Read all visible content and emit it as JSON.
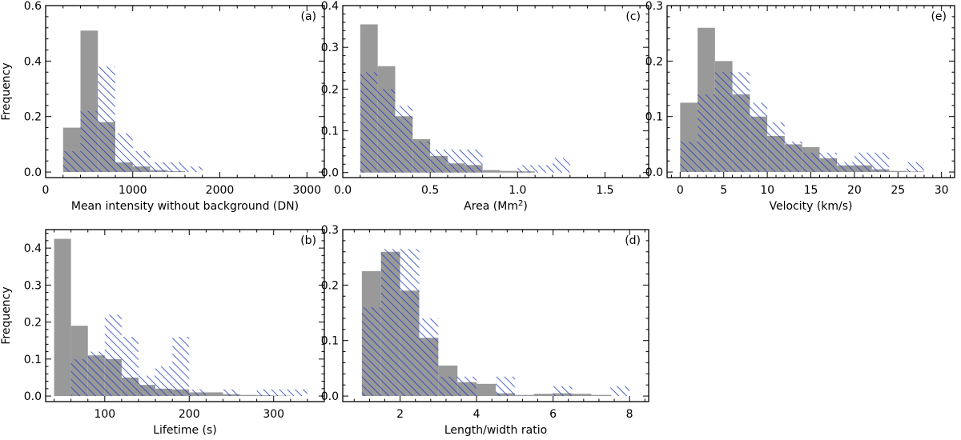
{
  "chart_data": [
    {
      "type": "bar",
      "panel_label": "(a)",
      "xlabel": "Mean intensity without background (DN)",
      "ylabel": "Frequency",
      "xlim": [
        0,
        3200
      ],
      "ylim": [
        -0.02,
        0.6
      ],
      "xticks": [
        0,
        1000,
        2000,
        3000
      ],
      "xtick_labels": [
        "0",
        "1000",
        "2000",
        "3000"
      ],
      "yticks": [
        0,
        0.2,
        0.4,
        0.6
      ],
      "ytick_labels": [
        "0.0",
        "0.2",
        "0.4",
        "0.6"
      ],
      "bin_edges": [
        200,
        400,
        600,
        800,
        1000,
        1200,
        1400,
        1600,
        1800
      ],
      "series": [
        {
          "name": "gray",
          "style": "filled",
          "color": "#999999",
          "values": [
            0.16,
            0.51,
            0.18,
            0.035,
            0.02,
            0.007,
            0.003,
            0.0
          ]
        },
        {
          "name": "blue-hatched",
          "style": "hatched",
          "color": "#1f3fbf",
          "values": [
            0.075,
            0.22,
            0.38,
            0.14,
            0.075,
            0.035,
            0.035,
            0.02
          ]
        }
      ]
    },
    {
      "type": "bar",
      "panel_label": "(c)",
      "xlabel": "Area (Mm",
      "xlabel_sup": "2",
      "xlabel_tail": ")",
      "ylabel": "",
      "xlim": [
        0,
        1.75
      ],
      "ylim": [
        -0.012,
        0.4
      ],
      "xticks": [
        0,
        0.5,
        1.0,
        1.5
      ],
      "xtick_labels": [
        "0.0",
        "0.5",
        "1.0",
        "1.5"
      ],
      "yticks": [
        0,
        0.1,
        0.2,
        0.3,
        0.4
      ],
      "ytick_labels": [
        "0.0",
        "0.1",
        "0.2",
        "0.3",
        "0.4"
      ],
      "bin_edges": [
        0.1,
        0.2,
        0.3,
        0.4,
        0.5,
        0.6,
        0.7,
        0.8,
        0.9,
        1.0,
        1.1,
        1.2,
        1.3
      ],
      "series": [
        {
          "name": "gray",
          "style": "filled",
          "color": "#999999",
          "values": [
            0.355,
            0.255,
            0.135,
            0.08,
            0.04,
            0.022,
            0.018,
            0.006,
            0.004,
            0.003,
            0.0,
            0.0
          ]
        },
        {
          "name": "blue-hatched",
          "style": "hatched",
          "color": "#1f3fbf",
          "values": [
            0.24,
            0.2,
            0.16,
            0.075,
            0.055,
            0.055,
            0.055,
            0.0,
            0.0,
            0.018,
            0.018,
            0.035
          ]
        }
      ]
    },
    {
      "type": "bar",
      "panel_label": "(e)",
      "xlabel": "Velocity (km/s)",
      "ylabel": "",
      "xlim": [
        -1.5,
        31.5
      ],
      "ylim": [
        -0.01,
        0.3
      ],
      "xticks": [
        0,
        5,
        10,
        15,
        20,
        25,
        30
      ],
      "xtick_labels": [
        "0",
        "5",
        "10",
        "15",
        "20",
        "25",
        "30"
      ],
      "yticks": [
        0,
        0.1,
        0.2,
        0.3
      ],
      "ytick_labels": [
        "0.0",
        "0.1",
        "0.2",
        "0.3"
      ],
      "bin_edges": [
        0,
        2,
        4,
        6,
        8,
        10,
        12,
        14,
        16,
        18,
        20,
        22,
        24,
        26,
        28
      ],
      "series": [
        {
          "name": "gray",
          "style": "filled",
          "color": "#999999",
          "values": [
            0.125,
            0.26,
            0.2,
            0.14,
            0.1,
            0.065,
            0.05,
            0.045,
            0.025,
            0.012,
            0.012,
            0.005,
            0.002,
            0.001
          ]
        },
        {
          "name": "blue-hatched",
          "style": "hatched",
          "color": "#1f3fbf",
          "values": [
            0.055,
            0.14,
            0.18,
            0.18,
            0.125,
            0.09,
            0.055,
            0.035,
            0.035,
            0.018,
            0.035,
            0.035,
            0.0,
            0.018
          ]
        }
      ]
    },
    {
      "type": "bar",
      "panel_label": "(b)",
      "xlabel": "Lifetime (s)",
      "ylabel": "Frequency",
      "xlim": [
        30,
        360
      ],
      "ylim": [
        -0.015,
        0.45
      ],
      "xticks": [
        100,
        200,
        300
      ],
      "xtick_labels": [
        "100",
        "200",
        "300"
      ],
      "yticks": [
        0,
        0.1,
        0.2,
        0.3,
        0.4
      ],
      "ytick_labels": [
        "0.0",
        "0.1",
        "0.2",
        "0.3",
        "0.4"
      ],
      "bin_edges": [
        40,
        60,
        80,
        100,
        120,
        140,
        160,
        180,
        200,
        220,
        240,
        260,
        280,
        300,
        320,
        340
      ],
      "series": [
        {
          "name": "gray",
          "style": "filled",
          "color": "#999999",
          "values": [
            0.425,
            0.19,
            0.11,
            0.1,
            0.05,
            0.03,
            0.02,
            0.018,
            0.01,
            0.01,
            0.005,
            0.003,
            0.002,
            0.001,
            0.0
          ]
        },
        {
          "name": "blue-hatched",
          "style": "hatched",
          "color": "#1f3fbf",
          "values": [
            0.0,
            0.1,
            0.12,
            0.22,
            0.16,
            0.055,
            0.08,
            0.16,
            0.018,
            0.0,
            0.018,
            0.0,
            0.018,
            0.018,
            0.018
          ]
        }
      ]
    },
    {
      "type": "bar",
      "panel_label": "(d)",
      "xlabel": "Length/width ratio",
      "ylabel": "",
      "xlim": [
        0.5,
        8.5
      ],
      "ylim": [
        -0.01,
        0.3
      ],
      "xticks": [
        2,
        4,
        6,
        8
      ],
      "xtick_labels": [
        "2",
        "4",
        "6",
        "8"
      ],
      "yticks": [
        0,
        0.1,
        0.2,
        0.3
      ],
      "ytick_labels": [
        "0.0",
        "0.1",
        "0.2",
        "0.3"
      ],
      "bin_edges": [
        1,
        1.5,
        2,
        2.5,
        3,
        3.5,
        4,
        4.5,
        5,
        5.5,
        6,
        6.5,
        7,
        7.5,
        8
      ],
      "series": [
        {
          "name": "gray",
          "style": "filled",
          "color": "#999999",
          "values": [
            0.225,
            0.26,
            0.19,
            0.105,
            0.055,
            0.025,
            0.022,
            0.005,
            0.002,
            0.004,
            0.005,
            0.004,
            0.002,
            0.0
          ]
        },
        {
          "name": "blue-hatched",
          "style": "hatched",
          "color": "#1f3fbf",
          "values": [
            0.16,
            0.265,
            0.265,
            0.14,
            0.035,
            0.035,
            0.0,
            0.035,
            0.0,
            0.0,
            0.018,
            0.0,
            0.0,
            0.018
          ]
        }
      ]
    }
  ]
}
